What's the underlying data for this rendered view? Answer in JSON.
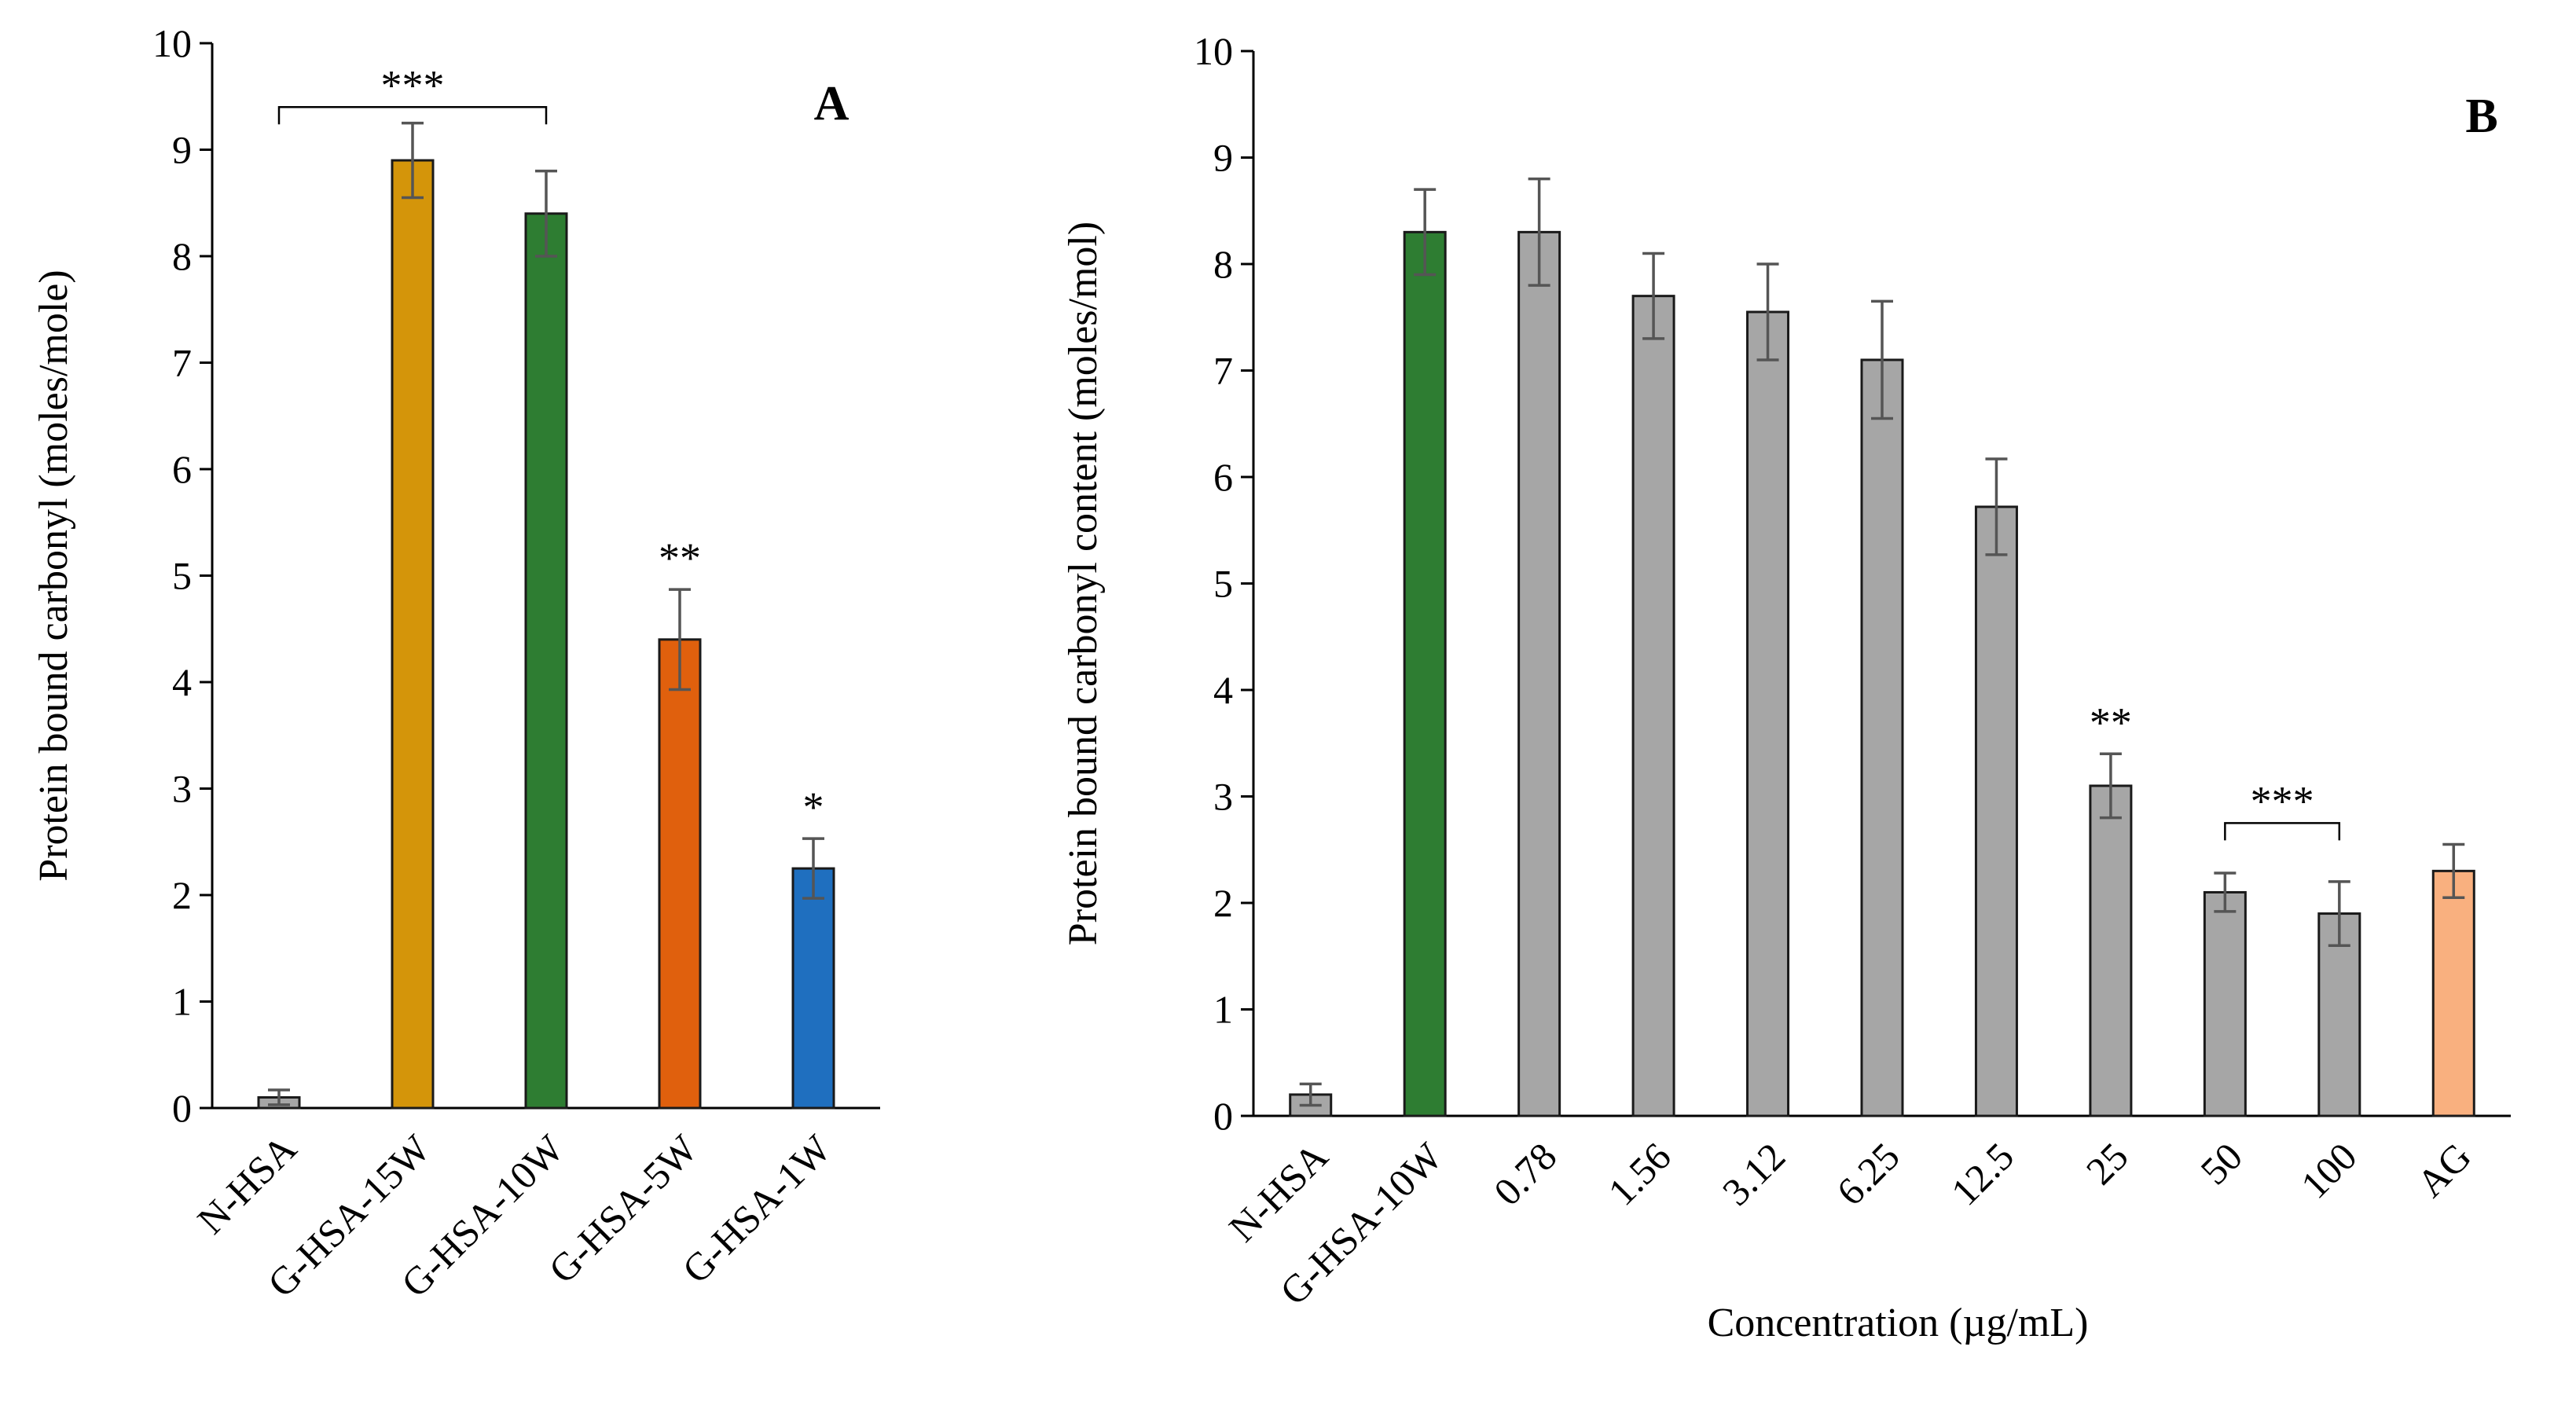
{
  "chart_data": [
    {
      "panel": "A",
      "type": "bar",
      "categories": [
        "N-HSA",
        "G-HSA-15W",
        "G-HSA-10W",
        "G-HSA-5W",
        "G-HSA-1W"
      ],
      "values": [
        0.1,
        8.9,
        8.4,
        4.4,
        2.25
      ],
      "errors": [
        0.07,
        0.35,
        0.4,
        0.47,
        0.28
      ],
      "colors": [
        "#a6a6a6",
        "#d4950a",
        "#2e7d32",
        "#e0600d",
        "#1f6fbf"
      ],
      "ylabel": "Protein bound carbonyl (moles/mole)",
      "xlabel": "",
      "ylim": [
        0,
        10
      ],
      "yticks": [
        0,
        1,
        2,
        3,
        4,
        5,
        6,
        7,
        8,
        9,
        10
      ],
      "annotations": [
        {
          "text": "***",
          "type": "bracket",
          "from": 0,
          "to": 2,
          "y": 9.4
        },
        {
          "text": "**",
          "type": "label",
          "at": 3
        },
        {
          "text": "*",
          "type": "label",
          "at": 4
        }
      ]
    },
    {
      "panel": "B",
      "type": "bar",
      "categories": [
        "N-HSA",
        "G-HSA-10W",
        "0.78",
        "1.56",
        "3.12",
        "6.25",
        "12.5",
        "25",
        "50",
        "100",
        "AG"
      ],
      "values": [
        0.2,
        8.3,
        8.3,
        7.7,
        7.55,
        7.1,
        5.72,
        3.1,
        2.1,
        1.9,
        2.3
      ],
      "errors": [
        0.1,
        0.4,
        0.5,
        0.4,
        0.45,
        0.55,
        0.45,
        0.3,
        0.18,
        0.3,
        0.25
      ],
      "colors": [
        "#a6a6a6",
        "#2e7d32",
        "#a6a6a6",
        "#a6a6a6",
        "#a6a6a6",
        "#a6a6a6",
        "#a6a6a6",
        "#a6a6a6",
        "#a6a6a6",
        "#a6a6a6",
        "#f9b07f"
      ],
      "ylabel": "Protein bound carbonyl content (moles/mol)",
      "xlabel": "Concentration (µg/mL)",
      "ylim": [
        0,
        10
      ],
      "yticks": [
        0,
        1,
        2,
        3,
        4,
        5,
        6,
        7,
        8,
        9,
        10
      ],
      "annotations": [
        {
          "text": "**",
          "type": "label",
          "at": 7
        },
        {
          "text": "***",
          "type": "bracket",
          "from": 8,
          "to": 9,
          "y": 2.75
        }
      ]
    }
  ]
}
